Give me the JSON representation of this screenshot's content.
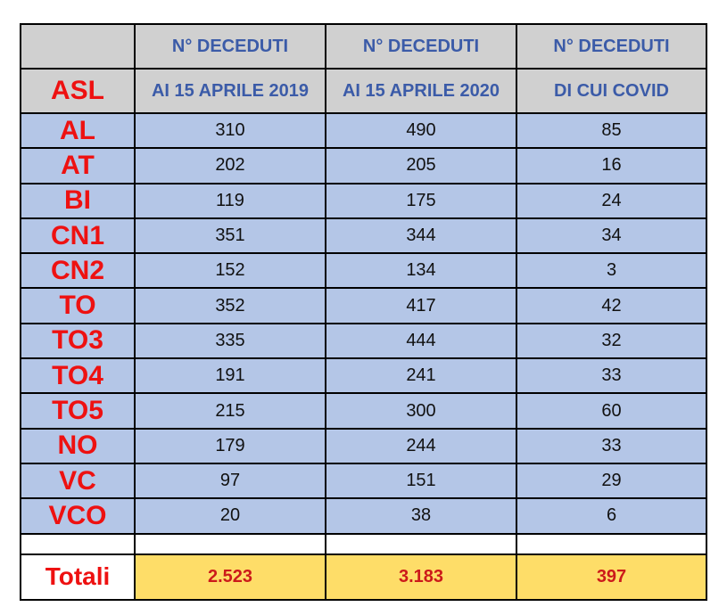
{
  "header": {
    "row1": [
      "",
      "N° DECEDUTI",
      "N° DECEDUTI",
      "N° DECEDUTI"
    ],
    "row2": [
      "ASL",
      "AI 15 APRILE 2019",
      "AI 15 APRILE 2020",
      "DI CUI COVID"
    ]
  },
  "rows": [
    {
      "asl": "AL",
      "v2019": "310",
      "v2020": "490",
      "covid": "85"
    },
    {
      "asl": "AT",
      "v2019": "202",
      "v2020": "205",
      "covid": "16"
    },
    {
      "asl": "BI",
      "v2019": "119",
      "v2020": "175",
      "covid": "24"
    },
    {
      "asl": "CN1",
      "v2019": "351",
      "v2020": "344",
      "covid": "34"
    },
    {
      "asl": "CN2",
      "v2019": "152",
      "v2020": "134",
      "covid": "3"
    },
    {
      "asl": "TO",
      "v2019": "352",
      "v2020": "417",
      "covid": "42"
    },
    {
      "asl": "TO3",
      "v2019": "335",
      "v2020": "444",
      "covid": "32"
    },
    {
      "asl": "TO4",
      "v2019": "191",
      "v2020": "241",
      "covid": "33"
    },
    {
      "asl": "TO5",
      "v2019": "215",
      "v2020": "300",
      "covid": "60"
    },
    {
      "asl": "NO",
      "v2019": "179",
      "v2020": "244",
      "covid": "33"
    },
    {
      "asl": "VC",
      "v2019": "97",
      "v2020": "151",
      "covid": "29"
    },
    {
      "asl": "VCO",
      "v2019": "20",
      "v2020": "38",
      "covid": "6"
    }
  ],
  "totals": {
    "label": "Totali",
    "v2019": "2.523",
    "v2020": "3.183",
    "covid": "397"
  },
  "colors": {
    "header_bg": "#d0d0d0",
    "header_text": "#3b5ba8",
    "row_bg": "#b4c6e7",
    "asl_text": "#ee1111",
    "total_bg": "#fedd68",
    "total_text": "#cc1a1a"
  }
}
